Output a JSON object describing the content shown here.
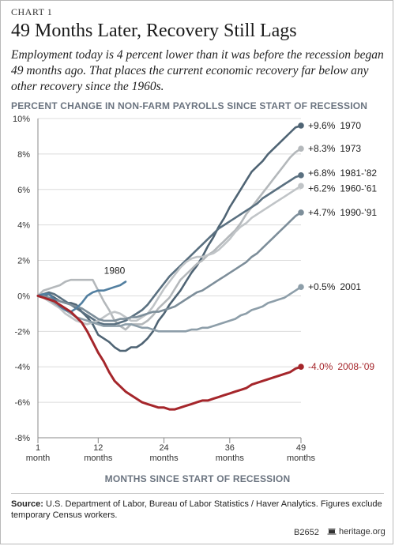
{
  "header": {
    "chart_label": "CHART 1",
    "title": "49 Months Later, Recovery Still Lags",
    "subtitle": "Employment today is 4 percent lower than it was before the recession began 49 months ago. That places the current economic recovery far below any other recovery since the 1960s."
  },
  "footer": {
    "source_label": "Source:",
    "source_text": "U.S. Department of Labor, Bureau of Labor Statistics / Haver Analytics. Figures exclude temporary Census workers.",
    "id_code": "B2652",
    "brand": "heritage.org",
    "brand_icon": "heritage-bell-icon"
  },
  "chart_data": {
    "type": "line",
    "ylabel": "PERCENT CHANGE IN NON-FARM PAYROLLS SINCE START OF RECESSION",
    "xlabel": "MONTHS SINCE START OF RECESSION",
    "xlim": [
      1,
      49
    ],
    "ylim": [
      -8,
      10
    ],
    "x_ticks": [
      {
        "value": 1,
        "line1": "1",
        "line2": "month"
      },
      {
        "value": 12,
        "line1": "12",
        "line2": "months"
      },
      {
        "value": 24,
        "line1": "24",
        "line2": "months"
      },
      {
        "value": 36,
        "line1": "36",
        "line2": "months"
      },
      {
        "value": 49,
        "line1": "49",
        "line2": "months"
      }
    ],
    "y_ticks": [
      {
        "value": 10,
        "label": "10%"
      },
      {
        "value": 8,
        "label": "8%"
      },
      {
        "value": 6,
        "label": "6%"
      },
      {
        "value": 4,
        "label": "4%"
      },
      {
        "value": 2,
        "label": "2%"
      },
      {
        "value": 0,
        "label": "0%"
      },
      {
        "value": -2,
        "label": "-2%"
      },
      {
        "value": -4,
        "label": "-4%"
      },
      {
        "value": -6,
        "label": "-6%"
      },
      {
        "value": -8,
        "label": "-8%"
      }
    ],
    "grid": "horizontal",
    "series": [
      {
        "name": "1970",
        "end_label": "+9.6%",
        "color": "#4f6474",
        "x": [
          1,
          2,
          3,
          4,
          5,
          6,
          7,
          8,
          9,
          10,
          11,
          12,
          13,
          14,
          15,
          16,
          17,
          18,
          19,
          20,
          21,
          22,
          23,
          24,
          25,
          26,
          27,
          28,
          29,
          30,
          31,
          32,
          33,
          34,
          35,
          36,
          37,
          38,
          39,
          40,
          41,
          42,
          43,
          44,
          45,
          46,
          47,
          48,
          49
        ],
        "values": [
          0,
          0,
          0.1,
          -0.1,
          -0.3,
          -0.4,
          -0.4,
          -0.5,
          -0.9,
          -1.2,
          -1.6,
          -2.2,
          -2.4,
          -2.6,
          -2.9,
          -3.1,
          -3.1,
          -2.9,
          -2.9,
          -2.7,
          -2.4,
          -2.0,
          -1.4,
          -1.0,
          -0.5,
          -0.1,
          0.3,
          0.8,
          1.3,
          1.7,
          2.2,
          2.8,
          3.3,
          3.9,
          4.4,
          5.0,
          5.5,
          6.0,
          6.5,
          7.0,
          7.3,
          7.6,
          8.0,
          8.3,
          8.6,
          8.9,
          9.2,
          9.5,
          9.6
        ]
      },
      {
        "name": "1973",
        "end_label": "+8.3%",
        "color": "#b4b8bb",
        "x": [
          1,
          2,
          3,
          4,
          5,
          6,
          7,
          8,
          9,
          10,
          11,
          12,
          13,
          14,
          15,
          16,
          17,
          18,
          19,
          20,
          21,
          22,
          23,
          24,
          25,
          26,
          27,
          28,
          29,
          30,
          31,
          32,
          33,
          34,
          35,
          36,
          37,
          38,
          39,
          40,
          41,
          42,
          43,
          44,
          45,
          46,
          47,
          48,
          49
        ],
        "values": [
          0,
          0.3,
          0.4,
          0.5,
          0.6,
          0.8,
          0.9,
          0.9,
          0.9,
          0.9,
          0.9,
          0.3,
          -0.3,
          -0.8,
          -1.4,
          -1.7,
          -1.9,
          -1.6,
          -1.6,
          -1.6,
          -1.4,
          -1.1,
          -0.7,
          -0.4,
          -0.1,
          0.4,
          0.9,
          1.2,
          1.5,
          1.8,
          2.0,
          2.3,
          2.5,
          2.8,
          3.1,
          3.4,
          3.7,
          4.1,
          4.6,
          5.0,
          5.4,
          5.8,
          6.2,
          6.6,
          7.0,
          7.4,
          7.8,
          8.1,
          8.3
        ]
      },
      {
        "name": "1981-’82",
        "end_label": "+6.8%",
        "color": "#5a7080",
        "x": [
          1,
          2,
          3,
          4,
          5,
          6,
          7,
          8,
          9,
          10,
          11,
          12,
          13,
          14,
          15,
          16,
          17,
          18,
          19,
          20,
          21,
          22,
          23,
          24,
          25,
          26,
          27,
          28,
          29,
          30,
          31,
          32,
          33,
          34,
          35,
          36,
          37,
          38,
          39,
          40,
          41,
          42,
          43,
          44,
          45,
          46,
          47,
          48,
          49
        ],
        "values": [
          0,
          0.1,
          0.2,
          0.1,
          -0.1,
          -0.3,
          -0.5,
          -0.7,
          -0.9,
          -1.1,
          -1.3,
          -1.5,
          -1.6,
          -1.6,
          -1.6,
          -1.5,
          -1.4,
          -1.2,
          -1.0,
          -0.8,
          -0.5,
          -0.1,
          0.3,
          0.7,
          1.1,
          1.4,
          1.7,
          2.0,
          2.3,
          2.6,
          2.9,
          3.2,
          3.5,
          3.8,
          4.0,
          4.2,
          4.4,
          4.6,
          4.8,
          5.0,
          5.2,
          5.5,
          5.7,
          5.9,
          6.1,
          6.3,
          6.5,
          6.7,
          6.8
        ]
      },
      {
        "name": "1960-’61",
        "end_label": "+6.2%",
        "color": "#c0c4c7",
        "x": [
          1,
          2,
          3,
          4,
          5,
          6,
          7,
          8,
          9,
          10,
          11,
          12,
          13,
          14,
          15,
          16,
          17,
          18,
          19,
          20,
          21,
          22,
          23,
          24,
          25,
          26,
          27,
          28,
          29,
          30,
          31,
          32,
          33,
          34,
          35,
          36,
          37,
          38,
          39,
          40,
          41,
          42,
          43,
          44,
          45,
          46,
          47,
          48,
          49
        ],
        "values": [
          0,
          -0.1,
          -0.3,
          -0.5,
          -0.7,
          -1.0,
          -1.2,
          -1.4,
          -1.5,
          -1.6,
          -1.5,
          -1.4,
          -1.2,
          -1.0,
          -0.9,
          -1.0,
          -1.2,
          -1.4,
          -1.4,
          -1.2,
          -1.0,
          -0.6,
          -0.1,
          0.4,
          0.8,
          1.2,
          1.6,
          1.9,
          2.1,
          2.2,
          2.2,
          2.3,
          2.4,
          2.6,
          2.9,
          3.2,
          3.6,
          3.9,
          4.1,
          4.4,
          4.6,
          4.8,
          5.0,
          5.2,
          5.4,
          5.6,
          5.8,
          6.0,
          6.2
        ]
      },
      {
        "name": "1990-’91",
        "end_label": "+4.7%",
        "color": "#7d8e9a",
        "x": [
          1,
          2,
          3,
          4,
          5,
          6,
          7,
          8,
          9,
          10,
          11,
          12,
          13,
          14,
          15,
          16,
          17,
          18,
          19,
          20,
          21,
          22,
          23,
          24,
          25,
          26,
          27,
          28,
          29,
          30,
          31,
          32,
          33,
          34,
          35,
          36,
          37,
          38,
          39,
          40,
          41,
          42,
          43,
          44,
          45,
          46,
          47,
          48,
          49
        ],
        "values": [
          0,
          0,
          -0.1,
          -0.2,
          -0.3,
          -0.4,
          -0.5,
          -0.6,
          -0.7,
          -0.9,
          -1.1,
          -1.3,
          -1.4,
          -1.4,
          -1.4,
          -1.3,
          -1.3,
          -1.2,
          -1.2,
          -1.1,
          -1.0,
          -0.9,
          -0.9,
          -0.8,
          -0.7,
          -0.6,
          -0.4,
          -0.2,
          0.0,
          0.2,
          0.3,
          0.5,
          0.7,
          0.9,
          1.1,
          1.3,
          1.5,
          1.7,
          1.9,
          2.2,
          2.4,
          2.7,
          3.0,
          3.3,
          3.6,
          3.9,
          4.2,
          4.5,
          4.7
        ]
      },
      {
        "name": "2001",
        "end_label": "+0.5%",
        "color": "#8d9ea9",
        "x": [
          1,
          2,
          3,
          4,
          5,
          6,
          7,
          8,
          9,
          10,
          11,
          12,
          13,
          14,
          15,
          16,
          17,
          18,
          19,
          20,
          21,
          22,
          23,
          24,
          25,
          26,
          27,
          28,
          29,
          30,
          31,
          32,
          33,
          34,
          35,
          36,
          37,
          38,
          39,
          40,
          41,
          42,
          43,
          44,
          45,
          46,
          47,
          48,
          49
        ],
        "values": [
          0,
          -0.1,
          -0.2,
          -0.4,
          -0.6,
          -0.8,
          -1.0,
          -1.2,
          -1.3,
          -1.4,
          -1.5,
          -1.6,
          -1.7,
          -1.7,
          -1.7,
          -1.7,
          -1.6,
          -1.6,
          -1.7,
          -1.8,
          -1.8,
          -1.9,
          -2.0,
          -2.0,
          -2.0,
          -2.0,
          -2.0,
          -2.0,
          -1.9,
          -1.9,
          -1.8,
          -1.8,
          -1.7,
          -1.6,
          -1.5,
          -1.4,
          -1.3,
          -1.1,
          -1.0,
          -0.8,
          -0.7,
          -0.6,
          -0.4,
          -0.3,
          -0.2,
          -0.1,
          0.1,
          0.3,
          0.5
        ]
      },
      {
        "name": "1980",
        "end_label": "",
        "color": "#527fa0",
        "x": [
          1,
          2,
          3,
          4,
          5,
          6,
          7,
          8,
          9,
          10,
          11,
          12,
          13,
          14,
          15,
          16,
          17
        ],
        "values": [
          0,
          0.1,
          0.1,
          -0.2,
          -0.6,
          -0.8,
          -0.9,
          -0.7,
          -0.4,
          0,
          0.2,
          0.3,
          0.3,
          0.4,
          0.5,
          0.6,
          0.8
        ]
      },
      {
        "name": "2008-’09",
        "end_label": "-4.0%",
        "color": "#a5262b",
        "highlight": true,
        "x": [
          1,
          2,
          3,
          4,
          5,
          6,
          7,
          8,
          9,
          10,
          11,
          12,
          13,
          14,
          15,
          16,
          17,
          18,
          19,
          20,
          21,
          22,
          23,
          24,
          25,
          26,
          27,
          28,
          29,
          30,
          31,
          32,
          33,
          34,
          35,
          36,
          37,
          38,
          39,
          40,
          41,
          42,
          43,
          44,
          45,
          46,
          47,
          48,
          49
        ],
        "values": [
          0,
          -0.1,
          -0.2,
          -0.3,
          -0.5,
          -0.7,
          -0.9,
          -1.2,
          -1.5,
          -2.0,
          -2.6,
          -3.2,
          -3.7,
          -4.3,
          -4.8,
          -5.1,
          -5.4,
          -5.6,
          -5.8,
          -6.0,
          -6.1,
          -6.2,
          -6.3,
          -6.3,
          -6.4,
          -6.4,
          -6.3,
          -6.2,
          -6.1,
          -6.0,
          -5.9,
          -5.9,
          -5.8,
          -5.7,
          -5.6,
          -5.5,
          -5.4,
          -5.3,
          -5.2,
          -5.0,
          -4.9,
          -4.8,
          -4.7,
          -4.6,
          -4.5,
          -4.4,
          -4.3,
          -4.1,
          -4.0
        ]
      }
    ]
  }
}
